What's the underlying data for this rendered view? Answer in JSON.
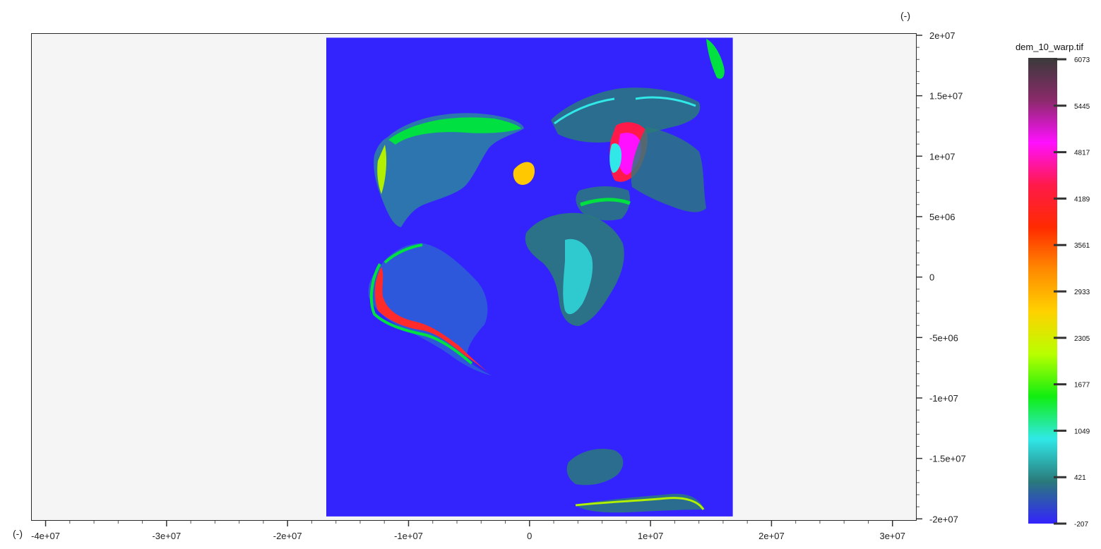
{
  "viewer": {
    "y_unit": "(-)",
    "x_unit": "(-)"
  },
  "raster": {
    "name": "dem_10_warp.tif",
    "ocean_color": "#3324fe",
    "background_color": "#f4f5f4",
    "extent_x": [
      -16800000,
      16800000
    ],
    "extent_y": [
      -19800000,
      19800000
    ]
  },
  "x_axis": {
    "range": [
      -41200000,
      32000000
    ],
    "ticks": [
      {
        "value": -40000000,
        "label": "-4e+07"
      },
      {
        "value": -30000000,
        "label": "-3e+07"
      },
      {
        "value": -20000000,
        "label": "-2e+07"
      },
      {
        "value": -10000000,
        "label": "-1e+07"
      },
      {
        "value": 0,
        "label": "0"
      },
      {
        "value": 10000000,
        "label": "1e+07"
      },
      {
        "value": 20000000,
        "label": "2e+07"
      },
      {
        "value": 30000000,
        "label": "3e+07"
      }
    ]
  },
  "y_axis": {
    "range": [
      -20100000,
      20000000
    ],
    "ticks": [
      {
        "value": 20000000,
        "label": "2e+07"
      },
      {
        "value": 15000000,
        "label": "1.5e+07"
      },
      {
        "value": 10000000,
        "label": "1e+07"
      },
      {
        "value": 5000000,
        "label": "5e+06"
      },
      {
        "value": 0,
        "label": "0"
      },
      {
        "value": -5000000,
        "label": "-5e+06"
      },
      {
        "value": -10000000,
        "label": "-1e+07"
      },
      {
        "value": -15000000,
        "label": "-1.5e+07"
      },
      {
        "value": -20000000,
        "label": "-2e+07"
      }
    ]
  },
  "colorbar": {
    "title": "dem_10_warp.tif",
    "min": -207,
    "max": 6073,
    "ticks": [
      "6073",
      "5445",
      "4817",
      "4189",
      "3561",
      "2933",
      "2305",
      "1677",
      "1049",
      "421",
      "-207"
    ],
    "colors": [
      "#3a3a3a",
      "#8a2a6a",
      "#ff10ff",
      "#ff1a4a",
      "#ff2a00",
      "#ff8a00",
      "#ffd200",
      "#b8ff00",
      "#10ee10",
      "#30e8e8",
      "#2a7a7a",
      "#3324fe"
    ]
  }
}
